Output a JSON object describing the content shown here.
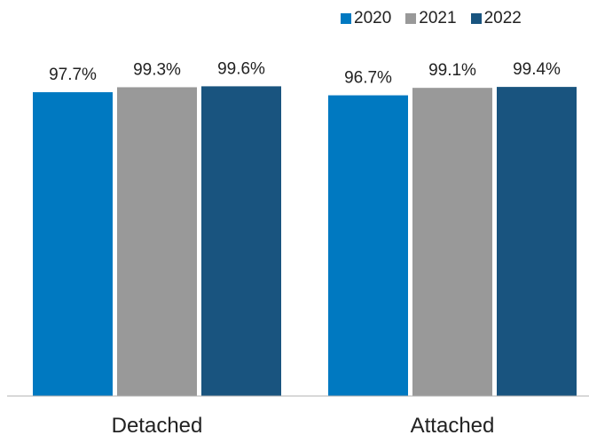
{
  "chart_data": {
    "type": "bar",
    "title": "",
    "xlabel": "",
    "ylabel": "",
    "categories": [
      "Detached",
      "Attached"
    ],
    "series": [
      {
        "name": "2020",
        "color": "#0079C1",
        "values": [
          97.7,
          96.7
        ],
        "labels": [
          "97.7%",
          "96.7%"
        ]
      },
      {
        "name": "2021",
        "color": "#999999",
        "values": [
          99.3,
          99.1
        ],
        "labels": [
          "99.3%",
          "99.1%"
        ]
      },
      {
        "name": "2022",
        "color": "#19547F",
        "values": [
          99.6,
          99.4
        ],
        "labels": [
          "99.6%",
          "99.4%"
        ]
      }
    ],
    "ylim": [
      0,
      100
    ],
    "grid": false,
    "legend": "top-right"
  }
}
